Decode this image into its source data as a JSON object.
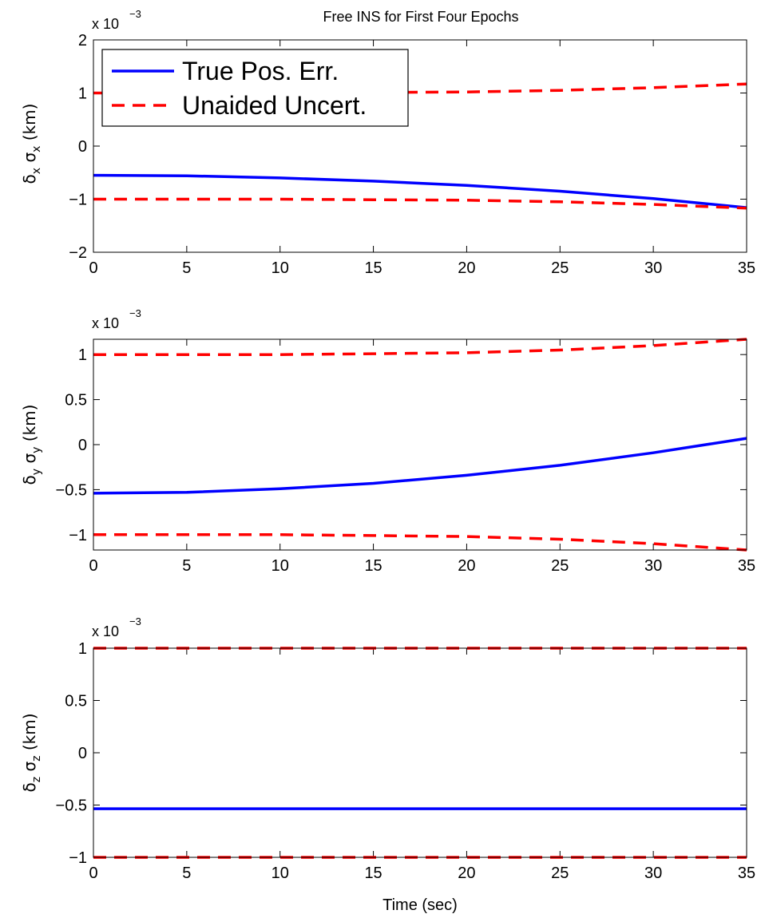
{
  "chart_data": [
    {
      "type": "line",
      "title": "Free INS for First Four Epochs",
      "ylabel": {
        "a": "δ",
        "a_sub": "x",
        "b": "σ",
        "b_sub": "x",
        "unit": "(km)"
      },
      "xlabel": "",
      "exponent_label": "x 10",
      "exponent_power": "−3",
      "xlim": [
        0,
        35
      ],
      "ylim": [
        -2,
        2
      ],
      "xticks": [
        0,
        5,
        10,
        15,
        20,
        25,
        30,
        35
      ],
      "yticks": [
        -2,
        -1,
        0,
        1,
        2
      ],
      "ytick_labels": [
        "−2",
        "−1",
        "0",
        "1",
        "2"
      ],
      "grid": false,
      "legend": {
        "placement": "top-left",
        "entries": [
          "True Pos. Err.",
          "Unaided Uncert."
        ]
      },
      "series": [
        {
          "name": "True Pos. Err.",
          "color": "#0000ff",
          "dash": "solid",
          "x": [
            0,
            5,
            10,
            15,
            20,
            25,
            30,
            35
          ],
          "y": [
            -0.55,
            -0.56,
            -0.6,
            -0.66,
            -0.74,
            -0.85,
            -0.99,
            -1.16
          ]
        },
        {
          "name": "Unaided Uncert.",
          "color": "#ff0000",
          "dash": "dashed",
          "x": [
            0,
            5,
            10,
            15,
            20,
            25,
            30,
            35
          ],
          "y": [
            1.0,
            1.0,
            1.0,
            1.01,
            1.02,
            1.05,
            1.1,
            1.17
          ]
        },
        {
          "color": "#ff0000",
          "dash": "dashed",
          "x": [
            0,
            5,
            10,
            15,
            20,
            25,
            30,
            35
          ],
          "y": [
            -1.0,
            -1.0,
            -1.0,
            -1.01,
            -1.02,
            -1.05,
            -1.1,
            -1.17
          ]
        }
      ]
    },
    {
      "type": "line",
      "title": "",
      "ylabel": {
        "a": "δ",
        "a_sub": "y",
        "b": "σ",
        "b_sub": "y",
        "unit": "(km)"
      },
      "xlabel": "",
      "exponent_label": "x 10",
      "exponent_power": "−3",
      "xlim": [
        0,
        35
      ],
      "ylim": [
        -1.17,
        1.17
      ],
      "xticks": [
        0,
        5,
        10,
        15,
        20,
        25,
        30,
        35
      ],
      "yticks": [
        -1,
        -0.5,
        0,
        0.5,
        1
      ],
      "ytick_labels": [
        "−1",
        "−0.5",
        "0",
        "0.5",
        "1"
      ],
      "grid": false,
      "series": [
        {
          "name": "True Pos. Err.",
          "color": "#0000ff",
          "dash": "solid",
          "x": [
            0,
            5,
            10,
            15,
            20,
            25,
            30,
            35
          ],
          "y": [
            -0.54,
            -0.53,
            -0.49,
            -0.43,
            -0.34,
            -0.23,
            -0.09,
            0.07
          ]
        },
        {
          "name": "Unaided Uncert.",
          "color": "#ff0000",
          "dash": "dashed",
          "x": [
            0,
            5,
            10,
            15,
            20,
            25,
            30,
            35
          ],
          "y": [
            1.0,
            1.0,
            1.0,
            1.01,
            1.02,
            1.05,
            1.1,
            1.17
          ]
        },
        {
          "color": "#ff0000",
          "dash": "dashed",
          "x": [
            0,
            5,
            10,
            15,
            20,
            25,
            30,
            35
          ],
          "y": [
            -1.0,
            -1.0,
            -1.0,
            -1.01,
            -1.02,
            -1.05,
            -1.1,
            -1.17
          ]
        }
      ]
    },
    {
      "type": "line",
      "title": "",
      "ylabel": {
        "a": "δ",
        "a_sub": "z",
        "b": "σ",
        "b_sub": "z",
        "unit": "(km)"
      },
      "xlabel": "Time (sec)",
      "exponent_label": "x 10",
      "exponent_power": "−3",
      "xlim": [
        0,
        35
      ],
      "ylim": [
        -1,
        1
      ],
      "xticks": [
        0,
        5,
        10,
        15,
        20,
        25,
        30,
        35
      ],
      "yticks": [
        -1,
        -0.5,
        0,
        0.5,
        1
      ],
      "ytick_labels": [
        "−1",
        "−0.5",
        "0",
        "0.5",
        "1"
      ],
      "grid": false,
      "series": [
        {
          "name": "True Pos. Err.",
          "color": "#0000ff",
          "dash": "solid",
          "x": [
            0,
            5,
            10,
            15,
            20,
            25,
            30,
            35
          ],
          "y": [
            -0.535,
            -0.535,
            -0.535,
            -0.535,
            -0.535,
            -0.535,
            -0.535,
            -0.535
          ]
        },
        {
          "name": "Unaided Uncert.",
          "color": "#ff0000",
          "dash": "dashed",
          "x": [
            0,
            5,
            10,
            15,
            20,
            25,
            30,
            35
          ],
          "y": [
            1.0,
            1.0,
            1.0,
            1.0,
            1.0,
            1.0,
            1.0,
            1.0
          ]
        },
        {
          "color": "#ff0000",
          "dash": "dashed",
          "x": [
            0,
            5,
            10,
            15,
            20,
            25,
            30,
            35
          ],
          "y": [
            -1.0,
            -1.0,
            -1.0,
            -1.0,
            -1.0,
            -1.0,
            -1.0,
            -1.0
          ]
        }
      ]
    }
  ]
}
